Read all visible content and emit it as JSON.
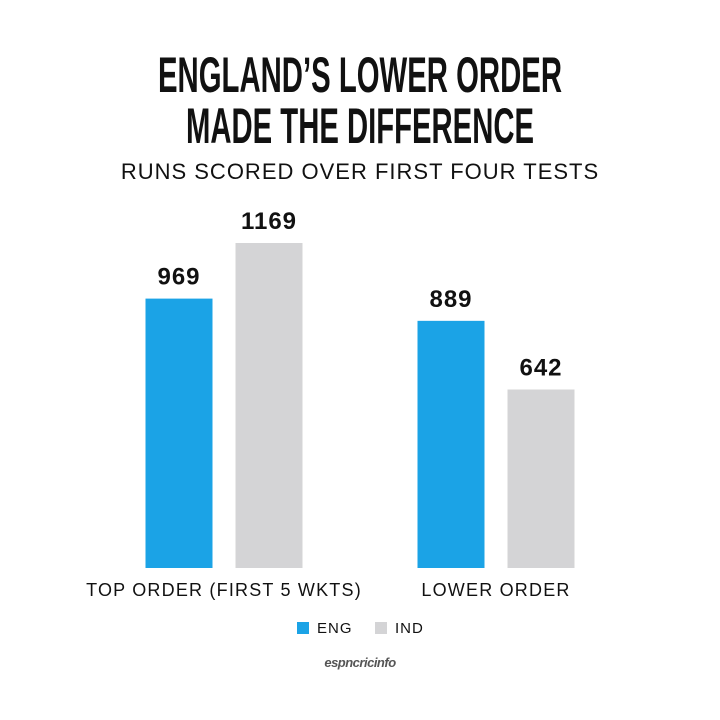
{
  "chart_data": {
    "type": "bar",
    "title": [
      "ENGLAND’S LOWER ORDER",
      "MADE THE DIFFERENCE"
    ],
    "subtitle": "RUNS SCORED OVER FIRST FOUR TESTS",
    "categories": [
      "TOP ORDER (FIRST 5 WKTS)",
      "LOWER ORDER"
    ],
    "series": [
      {
        "name": "ENG",
        "color": "#1ba3e6",
        "values": [
          969,
          889
        ]
      },
      {
        "name": "IND",
        "color": "#d4d4d6",
        "values": [
          1169,
          642
        ]
      }
    ],
    "source": "espncricinfo"
  }
}
